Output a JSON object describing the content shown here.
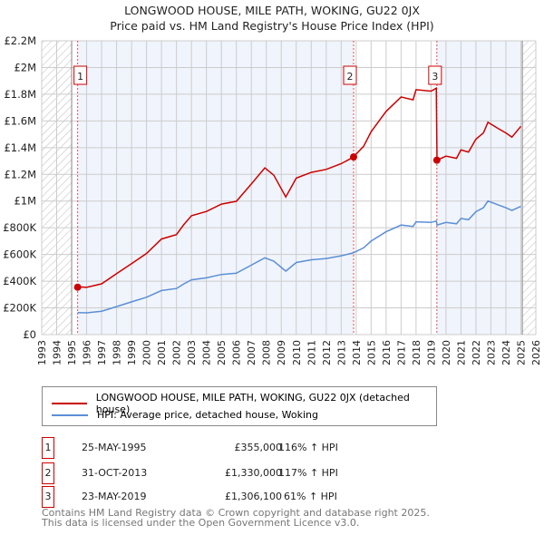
{
  "title": "LONGWOOD HOUSE, MILE PATH, WOKING, GU22 0JX",
  "subtitle": "Price paid vs. HM Land Registry's House Price Index (HPI)",
  "chart_data": {
    "type": "line",
    "xlim": [
      1993,
      2026
    ],
    "ylim": [
      0,
      2200000
    ],
    "y_ticks": [
      0,
      200000,
      400000,
      600000,
      800000,
      1000000,
      1200000,
      1400000,
      1600000,
      1800000,
      2000000,
      2200000
    ],
    "y_tick_labels": [
      "£0",
      "£200K",
      "£400K",
      "£600K",
      "£800K",
      "£1M",
      "£1.2M",
      "£1.4M",
      "£1.6M",
      "£1.8M",
      "£2M",
      "£2.2M"
    ],
    "x_ticks": [
      1993,
      1994,
      1995,
      1996,
      1997,
      1998,
      1999,
      2000,
      2001,
      2002,
      2003,
      2004,
      2005,
      2006,
      2007,
      2008,
      2009,
      2010,
      2011,
      2012,
      2013,
      2014,
      2015,
      2016,
      2017,
      2018,
      2019,
      2020,
      2021,
      2022,
      2023,
      2024,
      2025,
      2026
    ],
    "x": [
      1995.4,
      1996,
      1997,
      1998,
      1999,
      2000,
      2001,
      2002,
      2002.5,
      2003,
      2004,
      2005,
      2006,
      2007,
      2007.9,
      2008.5,
      2009.3,
      2010,
      2011,
      2012,
      2013,
      2013.8,
      2014.5,
      2015,
      2016,
      2017,
      2017.8,
      2018,
      2019,
      2019.35,
      2019.4,
      2020,
      2020.7,
      2021,
      2021.5,
      2022,
      2022.5,
      2022.8,
      2023.5,
      2024,
      2024.4,
      2025
    ],
    "series": [
      {
        "name": "LONGWOOD HOUSE, MILE PATH, WOKING, GU22 0JX (detached house)",
        "color": "#cc0000",
        "values": [
          358,
          354,
          380,
          456,
          532,
          608,
          716,
          749,
          825,
          890,
          922,
          977,
          998,
          1128,
          1248,
          1194,
          1031,
          1172,
          1215,
          1237,
          1280,
          1328,
          1410,
          1519,
          1671,
          1780,
          1758,
          1834,
          1823,
          1845,
          1306,
          1336,
          1320,
          1383,
          1367,
          1463,
          1510,
          1590,
          1542,
          1510,
          1479,
          1560
        ]
      },
      {
        "name": "HPI: Average price, detached house, Woking",
        "color": "#5b8fd6",
        "values": [
          165,
          163,
          175,
          210,
          245,
          280,
          330,
          345,
          380,
          410,
          425,
          450,
          460,
          520,
          575,
          550,
          475,
          540,
          560,
          570,
          590,
          612,
          650,
          700,
          770,
          820,
          810,
          845,
          840,
          850,
          820,
          840,
          830,
          870,
          860,
          920,
          950,
          1000,
          970,
          950,
          930,
          960
        ]
      }
    ],
    "value_unit": "thousands GBP",
    "hatched_before": 1995.0,
    "hatched_after": 2025.1,
    "sales": [
      {
        "label": "1",
        "x": 1995.4,
        "price": 355000,
        "date": "25-MAY-1995",
        "price_text": "£355,000",
        "hpi": "116% ↑ HPI"
      },
      {
        "label": "2",
        "x": 2013.83,
        "price": 1330000,
        "date": "31-OCT-2013",
        "price_text": "£1,330,000",
        "hpi": "117% ↑ HPI"
      },
      {
        "label": "3",
        "x": 2019.39,
        "price": 1306100,
        "date": "23-MAY-2019",
        "price_text": "£1,306,100",
        "hpi": "61% ↑ HPI"
      }
    ]
  },
  "footer": [
    "Contains HM Land Registry data © Crown copyright and database right 2025.",
    "This data is licensed under the Open Government Licence v3.0."
  ]
}
